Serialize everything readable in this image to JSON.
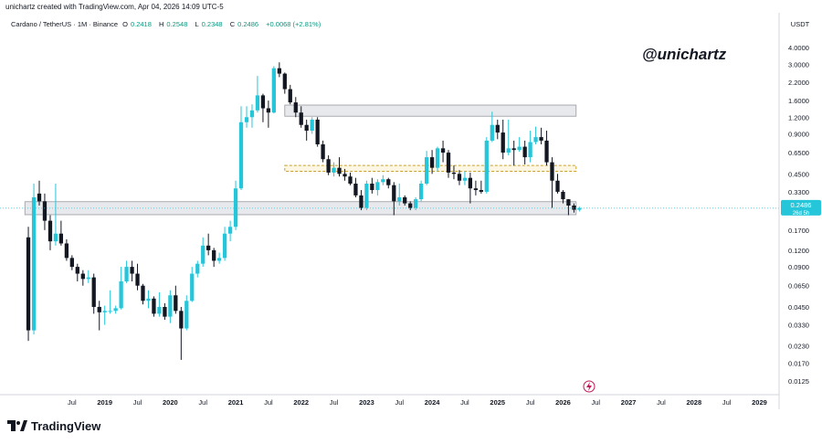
{
  "header": {
    "text": "unichartz created with TradingView.com, Apr 04, 2026 14:09 UTC-5"
  },
  "legend": {
    "symbol": "Cardano / TetherUS · 1M · Binance",
    "o_label": "O",
    "o_value": "0.2418",
    "h_label": "H",
    "h_value": "0.2548",
    "l_label": "L",
    "l_value": "0.2348",
    "c_label": "C",
    "c_value": "0.2486",
    "change": "+0.0068 (+2.81%)"
  },
  "watermark": "@unichartz",
  "footer": {
    "brand": "TradingView"
  },
  "chart_data": {
    "type": "candlestick",
    "currency_label": "USDT",
    "y_scale": "log",
    "ylim": [
      0.0105,
      5.0
    ],
    "y_ticks": [
      "4.0000",
      "3.0000",
      "2.2000",
      "1.6000",
      "1.2000",
      "0.9000",
      "0.6500",
      "0.4500",
      "0.3300",
      "0.2486",
      "0.1700",
      "0.1200",
      "0.0900",
      "0.0650",
      "0.0450",
      "0.0330",
      "0.0230",
      "0.0170",
      "0.0125"
    ],
    "y_tick_values": [
      4.0,
      3.0,
      2.2,
      1.6,
      1.2,
      0.9,
      0.65,
      0.45,
      0.33,
      0.2486,
      0.17,
      0.12,
      0.09,
      0.065,
      0.045,
      0.033,
      0.023,
      0.017,
      0.0125
    ],
    "price_label": {
      "value": "0.2486",
      "sub": "26d 5h",
      "color": "#26c6da"
    },
    "x_ticks": [
      {
        "label": "Jul",
        "t": 2018.5
      },
      {
        "label": "2019",
        "t": 2019.0
      },
      {
        "label": "Jul",
        "t": 2019.5
      },
      {
        "label": "2020",
        "t": 2020.0
      },
      {
        "label": "Jul",
        "t": 2020.5
      },
      {
        "label": "2021",
        "t": 2021.0
      },
      {
        "label": "Jul",
        "t": 2021.5
      },
      {
        "label": "2022",
        "t": 2022.0
      },
      {
        "label": "Jul",
        "t": 2022.5
      },
      {
        "label": "2023",
        "t": 2023.0
      },
      {
        "label": "Jul",
        "t": 2023.5
      },
      {
        "label": "2024",
        "t": 2024.0
      },
      {
        "label": "Jul",
        "t": 2024.5
      },
      {
        "label": "2025",
        "t": 2025.0
      },
      {
        "label": "Jul",
        "t": 2025.5
      },
      {
        "label": "2026",
        "t": 2026.0
      },
      {
        "label": "Jul",
        "t": 2026.5
      },
      {
        "label": "2027",
        "t": 2027.0
      },
      {
        "label": "Jul",
        "t": 2027.5
      },
      {
        "label": "2028",
        "t": 2028.0
      },
      {
        "label": "Jul",
        "t": 2028.5
      },
      {
        "label": "2029",
        "t": 2029.0
      }
    ],
    "colors": {
      "up": "#26c6da",
      "down": "#131722",
      "zone": "#d1d4dc",
      "dashed_zone": "#c9a227"
    },
    "zones": [
      {
        "from_t": 2021.75,
        "to_t": 2026.2,
        "low": 1.22,
        "high": 1.48,
        "style": "solid"
      },
      {
        "from_t": 2021.75,
        "to_t": 2026.2,
        "low": 0.47,
        "high": 0.52,
        "style": "dashed"
      },
      {
        "from_t": 2017.78,
        "to_t": 2026.2,
        "low": 0.222,
        "high": 0.278,
        "style": "solid"
      }
    ],
    "candles": [
      {
        "t": 2017.833,
        "o": 0.15,
        "h": 0.18,
        "l": 0.025,
        "c": 0.03
      },
      {
        "t": 2017.917,
        "o": 0.03,
        "h": 0.38,
        "l": 0.028,
        "c": 0.3
      },
      {
        "t": 2018.0,
        "o": 0.32,
        "h": 0.4,
        "l": 0.26,
        "c": 0.28
      },
      {
        "t": 2018.083,
        "o": 0.28,
        "h": 0.32,
        "l": 0.17,
        "c": 0.2
      },
      {
        "t": 2018.167,
        "o": 0.2,
        "h": 0.22,
        "l": 0.12,
        "c": 0.14
      },
      {
        "t": 2018.25,
        "o": 0.14,
        "h": 0.38,
        "l": 0.13,
        "c": 0.16
      },
      {
        "t": 2018.333,
        "o": 0.16,
        "h": 0.2,
        "l": 0.13,
        "c": 0.135
      },
      {
        "t": 2018.417,
        "o": 0.135,
        "h": 0.145,
        "l": 0.1,
        "c": 0.105
      },
      {
        "t": 2018.5,
        "o": 0.105,
        "h": 0.11,
        "l": 0.085,
        "c": 0.09
      },
      {
        "t": 2018.583,
        "o": 0.09,
        "h": 0.095,
        "l": 0.07,
        "c": 0.08
      },
      {
        "t": 2018.667,
        "o": 0.08,
        "h": 0.085,
        "l": 0.065,
        "c": 0.073
      },
      {
        "t": 2018.75,
        "o": 0.073,
        "h": 0.085,
        "l": 0.068,
        "c": 0.075
      },
      {
        "t": 2018.833,
        "o": 0.075,
        "h": 0.08,
        "l": 0.04,
        "c": 0.045
      },
      {
        "t": 2018.917,
        "o": 0.045,
        "h": 0.05,
        "l": 0.03,
        "c": 0.041
      },
      {
        "t": 2019.0,
        "o": 0.041,
        "h": 0.046,
        "l": 0.033,
        "c": 0.042
      },
      {
        "t": 2019.083,
        "o": 0.042,
        "h": 0.06,
        "l": 0.04,
        "c": 0.042
      },
      {
        "t": 2019.167,
        "o": 0.042,
        "h": 0.046,
        "l": 0.04,
        "c": 0.044
      },
      {
        "t": 2019.25,
        "o": 0.044,
        "h": 0.09,
        "l": 0.043,
        "c": 0.07
      },
      {
        "t": 2019.333,
        "o": 0.07,
        "h": 0.1,
        "l": 0.068,
        "c": 0.09
      },
      {
        "t": 2019.417,
        "o": 0.09,
        "h": 0.1,
        "l": 0.07,
        "c": 0.08
      },
      {
        "t": 2019.5,
        "o": 0.08,
        "h": 0.095,
        "l": 0.06,
        "c": 0.065
      },
      {
        "t": 2019.583,
        "o": 0.065,
        "h": 0.067,
        "l": 0.047,
        "c": 0.05
      },
      {
        "t": 2019.667,
        "o": 0.05,
        "h": 0.06,
        "l": 0.044,
        "c": 0.052
      },
      {
        "t": 2019.75,
        "o": 0.052,
        "h": 0.054,
        "l": 0.038,
        "c": 0.04
      },
      {
        "t": 2019.833,
        "o": 0.04,
        "h": 0.058,
        "l": 0.038,
        "c": 0.045
      },
      {
        "t": 2019.917,
        "o": 0.045,
        "h": 0.048,
        "l": 0.036,
        "c": 0.038
      },
      {
        "t": 2020.0,
        "o": 0.038,
        "h": 0.06,
        "l": 0.034,
        "c": 0.055
      },
      {
        "t": 2020.083,
        "o": 0.055,
        "h": 0.065,
        "l": 0.04,
        "c": 0.042
      },
      {
        "t": 2020.167,
        "o": 0.042,
        "h": 0.045,
        "l": 0.018,
        "c": 0.031
      },
      {
        "t": 2020.25,
        "o": 0.031,
        "h": 0.055,
        "l": 0.03,
        "c": 0.05
      },
      {
        "t": 2020.333,
        "o": 0.05,
        "h": 0.09,
        "l": 0.049,
        "c": 0.08
      },
      {
        "t": 2020.417,
        "o": 0.08,
        "h": 0.1,
        "l": 0.075,
        "c": 0.095
      },
      {
        "t": 2020.5,
        "o": 0.095,
        "h": 0.15,
        "l": 0.09,
        "c": 0.13
      },
      {
        "t": 2020.583,
        "o": 0.13,
        "h": 0.16,
        "l": 0.11,
        "c": 0.12
      },
      {
        "t": 2020.667,
        "o": 0.12,
        "h": 0.125,
        "l": 0.09,
        "c": 0.1
      },
      {
        "t": 2020.75,
        "o": 0.1,
        "h": 0.115,
        "l": 0.095,
        "c": 0.105
      },
      {
        "t": 2020.833,
        "o": 0.105,
        "h": 0.18,
        "l": 0.1,
        "c": 0.16
      },
      {
        "t": 2020.917,
        "o": 0.16,
        "h": 0.2,
        "l": 0.14,
        "c": 0.18
      },
      {
        "t": 2021.0,
        "o": 0.18,
        "h": 0.4,
        "l": 0.17,
        "c": 0.35
      },
      {
        "t": 2021.083,
        "o": 0.35,
        "h": 1.45,
        "l": 0.34,
        "c": 1.1
      },
      {
        "t": 2021.167,
        "o": 1.1,
        "h": 1.45,
        "l": 1.0,
        "c": 1.2
      },
      {
        "t": 2021.25,
        "o": 1.2,
        "h": 1.5,
        "l": 1.0,
        "c": 1.35
      },
      {
        "t": 2021.333,
        "o": 1.35,
        "h": 2.45,
        "l": 1.3,
        "c": 1.75
      },
      {
        "t": 2021.417,
        "o": 1.75,
        "h": 1.8,
        "l": 1.1,
        "c": 1.4
      },
      {
        "t": 2021.5,
        "o": 1.4,
        "h": 1.6,
        "l": 1.0,
        "c": 1.3
      },
      {
        "t": 2021.583,
        "o": 1.3,
        "h": 2.9,
        "l": 1.28,
        "c": 2.8
      },
      {
        "t": 2021.667,
        "o": 2.8,
        "h": 3.1,
        "l": 2.4,
        "c": 2.55
      },
      {
        "t": 2021.75,
        "o": 2.55,
        "h": 2.6,
        "l": 1.8,
        "c": 1.95
      },
      {
        "t": 2021.833,
        "o": 1.95,
        "h": 2.1,
        "l": 1.5,
        "c": 1.55
      },
      {
        "t": 2021.917,
        "o": 1.55,
        "h": 1.7,
        "l": 1.2,
        "c": 1.3
      },
      {
        "t": 2022.0,
        "o": 1.3,
        "h": 1.45,
        "l": 1.0,
        "c": 1.05
      },
      {
        "t": 2022.083,
        "o": 1.05,
        "h": 1.15,
        "l": 0.8,
        "c": 0.95
      },
      {
        "t": 2022.167,
        "o": 0.95,
        "h": 1.2,
        "l": 0.9,
        "c": 1.15
      },
      {
        "t": 2022.25,
        "o": 1.15,
        "h": 1.2,
        "l": 0.72,
        "c": 0.75
      },
      {
        "t": 2022.333,
        "o": 0.75,
        "h": 0.8,
        "l": 0.55,
        "c": 0.58
      },
      {
        "t": 2022.417,
        "o": 0.58,
        "h": 0.62,
        "l": 0.44,
        "c": 0.46
      },
      {
        "t": 2022.5,
        "o": 0.46,
        "h": 0.55,
        "l": 0.43,
        "c": 0.5
      },
      {
        "t": 2022.583,
        "o": 0.5,
        "h": 0.6,
        "l": 0.43,
        "c": 0.45
      },
      {
        "t": 2022.667,
        "o": 0.45,
        "h": 0.49,
        "l": 0.4,
        "c": 0.43
      },
      {
        "t": 2022.75,
        "o": 0.43,
        "h": 0.46,
        "l": 0.37,
        "c": 0.38
      },
      {
        "t": 2022.833,
        "o": 0.38,
        "h": 0.42,
        "l": 0.3,
        "c": 0.31
      },
      {
        "t": 2022.917,
        "o": 0.31,
        "h": 0.34,
        "l": 0.24,
        "c": 0.25
      },
      {
        "t": 2023.0,
        "o": 0.25,
        "h": 0.4,
        "l": 0.24,
        "c": 0.38
      },
      {
        "t": 2023.083,
        "o": 0.38,
        "h": 0.42,
        "l": 0.32,
        "c": 0.34
      },
      {
        "t": 2023.167,
        "o": 0.34,
        "h": 0.41,
        "l": 0.31,
        "c": 0.39
      },
      {
        "t": 2023.25,
        "o": 0.39,
        "h": 0.44,
        "l": 0.37,
        "c": 0.41
      },
      {
        "t": 2023.333,
        "o": 0.41,
        "h": 0.42,
        "l": 0.35,
        "c": 0.37
      },
      {
        "t": 2023.417,
        "o": 0.37,
        "h": 0.39,
        "l": 0.22,
        "c": 0.28
      },
      {
        "t": 2023.5,
        "o": 0.28,
        "h": 0.38,
        "l": 0.26,
        "c": 0.3
      },
      {
        "t": 2023.583,
        "o": 0.3,
        "h": 0.31,
        "l": 0.26,
        "c": 0.27
      },
      {
        "t": 2023.667,
        "o": 0.27,
        "h": 0.28,
        "l": 0.24,
        "c": 0.25
      },
      {
        "t": 2023.75,
        "o": 0.25,
        "h": 0.3,
        "l": 0.24,
        "c": 0.29
      },
      {
        "t": 2023.833,
        "o": 0.29,
        "h": 0.4,
        "l": 0.28,
        "c": 0.38
      },
      {
        "t": 2023.917,
        "o": 0.38,
        "h": 0.67,
        "l": 0.37,
        "c": 0.6
      },
      {
        "t": 2024.0,
        "o": 0.6,
        "h": 0.68,
        "l": 0.45,
        "c": 0.5
      },
      {
        "t": 2024.083,
        "o": 0.5,
        "h": 0.72,
        "l": 0.47,
        "c": 0.7
      },
      {
        "t": 2024.167,
        "o": 0.7,
        "h": 0.8,
        "l": 0.55,
        "c": 0.65
      },
      {
        "t": 2024.25,
        "o": 0.65,
        "h": 0.68,
        "l": 0.42,
        "c": 0.46
      },
      {
        "t": 2024.333,
        "o": 0.46,
        "h": 0.52,
        "l": 0.41,
        "c": 0.45
      },
      {
        "t": 2024.417,
        "o": 0.45,
        "h": 0.48,
        "l": 0.37,
        "c": 0.4
      },
      {
        "t": 2024.5,
        "o": 0.4,
        "h": 0.47,
        "l": 0.37,
        "c": 0.42
      },
      {
        "t": 2024.583,
        "o": 0.42,
        "h": 0.46,
        "l": 0.27,
        "c": 0.35
      },
      {
        "t": 2024.667,
        "o": 0.35,
        "h": 0.4,
        "l": 0.31,
        "c": 0.34
      },
      {
        "t": 2024.75,
        "o": 0.34,
        "h": 0.4,
        "l": 0.32,
        "c": 0.33
      },
      {
        "t": 2024.833,
        "o": 0.33,
        "h": 0.85,
        "l": 0.32,
        "c": 0.8
      },
      {
        "t": 2024.917,
        "o": 0.8,
        "h": 1.32,
        "l": 0.78,
        "c": 1.05
      },
      {
        "t": 2025.0,
        "o": 1.05,
        "h": 1.15,
        "l": 0.82,
        "c": 0.92
      },
      {
        "t": 2025.083,
        "o": 0.92,
        "h": 1.15,
        "l": 0.58,
        "c": 0.65
      },
      {
        "t": 2025.167,
        "o": 0.65,
        "h": 1.15,
        "l": 0.62,
        "c": 0.7
      },
      {
        "t": 2025.25,
        "o": 0.7,
        "h": 0.8,
        "l": 0.52,
        "c": 0.68
      },
      {
        "t": 2025.333,
        "o": 0.68,
        "h": 0.85,
        "l": 0.66,
        "c": 0.72
      },
      {
        "t": 2025.417,
        "o": 0.72,
        "h": 0.8,
        "l": 0.53,
        "c": 0.6
      },
      {
        "t": 2025.5,
        "o": 0.6,
        "h": 0.95,
        "l": 0.55,
        "c": 0.78
      },
      {
        "t": 2025.583,
        "o": 0.78,
        "h": 1.02,
        "l": 0.75,
        "c": 0.85
      },
      {
        "t": 2025.667,
        "o": 0.85,
        "h": 1.0,
        "l": 0.75,
        "c": 0.8
      },
      {
        "t": 2025.75,
        "o": 0.8,
        "h": 0.95,
        "l": 0.52,
        "c": 0.55
      },
      {
        "t": 2025.833,
        "o": 0.55,
        "h": 0.6,
        "l": 0.25,
        "c": 0.4
      },
      {
        "t": 2025.917,
        "o": 0.4,
        "h": 0.45,
        "l": 0.32,
        "c": 0.33
      },
      {
        "t": 2026.0,
        "o": 0.33,
        "h": 0.34,
        "l": 0.27,
        "c": 0.29
      },
      {
        "t": 2026.083,
        "o": 0.29,
        "h": 0.29,
        "l": 0.22,
        "c": 0.26
      },
      {
        "t": 2026.167,
        "o": 0.26,
        "h": 0.27,
        "l": 0.23,
        "c": 0.242
      },
      {
        "t": 2026.25,
        "o": 0.2418,
        "h": 0.2548,
        "l": 0.2348,
        "c": 0.2486
      }
    ]
  }
}
